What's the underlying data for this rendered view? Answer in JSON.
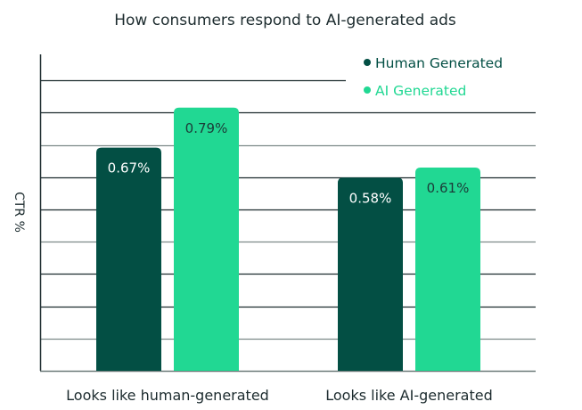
{
  "chart_data": {
    "type": "bar",
    "title": "How consumers respond to AI-generated ads",
    "xlabel": "",
    "ylabel": "CTR %",
    "categories": [
      "Looks like human-generated",
      "Looks like AI-generated"
    ],
    "series": [
      {
        "name": "Human Generated",
        "color": "#034f44",
        "label_color": "#ffffff",
        "values": [
          0.67,
          0.58
        ],
        "labels": [
          "0.67%",
          "0.58%"
        ]
      },
      {
        "name": "AI Generated",
        "color": "#21d893",
        "label_color": "#1c3b38",
        "values": [
          0.79,
          0.61
        ],
        "labels": [
          "0.79%",
          "0.61%"
        ]
      }
    ],
    "ylim": [
      0,
      0.95
    ],
    "gridlines": 9,
    "grid": true,
    "legend_position": "top-right",
    "ytick_labels_shown": false
  }
}
